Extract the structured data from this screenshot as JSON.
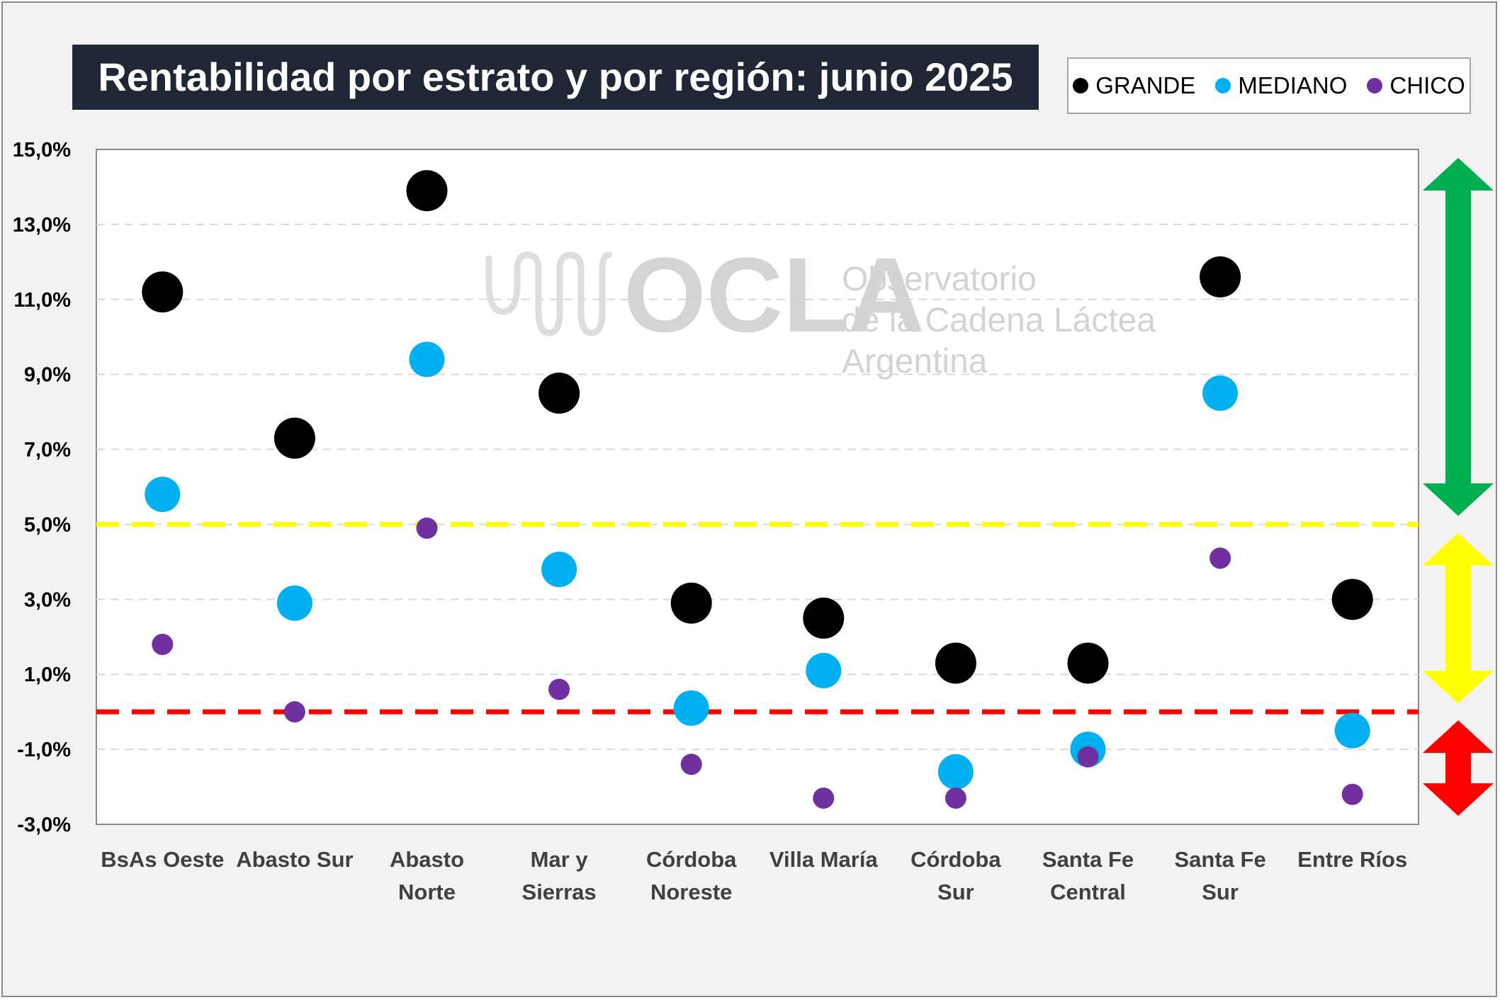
{
  "chart_data": {
    "type": "scatter",
    "title": "Rentabilidad por estrato y por región: junio 2025",
    "categories": [
      [
        "BsAs Oeste"
      ],
      [
        "Abasto Sur"
      ],
      [
        "Abasto",
        "Norte"
      ],
      [
        "Mar y",
        "Sierras"
      ],
      [
        "Córdoba",
        "Noreste"
      ],
      [
        "Villa María"
      ],
      [
        "Córdoba",
        "Sur"
      ],
      [
        "Santa Fe",
        "Central"
      ],
      [
        "Santa Fe",
        "Sur"
      ],
      [
        "Entre Ríos"
      ]
    ],
    "series": [
      {
        "name": "GRANDE",
        "color": "#000000",
        "values": [
          11.2,
          7.3,
          13.9,
          8.5,
          2.9,
          2.5,
          1.3,
          1.3,
          11.6,
          3.0
        ]
      },
      {
        "name": "MEDIANO",
        "color": "#00b0f0",
        "values": [
          5.8,
          2.9,
          9.4,
          3.8,
          0.1,
          1.1,
          -1.6,
          -1.0,
          8.5,
          -0.5
        ]
      },
      {
        "name": "CHICO",
        "color": "#7030a0",
        "values": [
          1.8,
          0.0,
          4.9,
          0.6,
          -1.4,
          -2.3,
          -2.3,
          -1.2,
          4.1,
          -2.2
        ]
      }
    ],
    "ylim": [
      -3,
      15
    ],
    "yticks": [
      15,
      13,
      11,
      9,
      7,
      5,
      3,
      1,
      -1,
      -3
    ],
    "ytick_labels": [
      "15,0%",
      "13,0%",
      "11,0%",
      "9,0%",
      "7,0%",
      "5,0%",
      "3,0%",
      "1,0%",
      "-1,0%",
      "-3,0%"
    ],
    "reference_lines": [
      {
        "value": 5.0,
        "color": "#ffff00"
      },
      {
        "value": 0.0,
        "color": "#ff0000"
      }
    ],
    "zones": [
      {
        "from": 5.0,
        "to": 15.0,
        "color": "#00b050"
      },
      {
        "from": 0.0,
        "to": 5.0,
        "color": "#ffff00"
      },
      {
        "from": -3.0,
        "to": 0.0,
        "color": "#ff0000"
      }
    ],
    "grid": "horizontal dashed",
    "legend_position": "top-right"
  },
  "watermark": {
    "brand": "OCLA",
    "line1": "Observatorio",
    "line2": "de la Cadena Láctea",
    "line3": "Argentina"
  }
}
